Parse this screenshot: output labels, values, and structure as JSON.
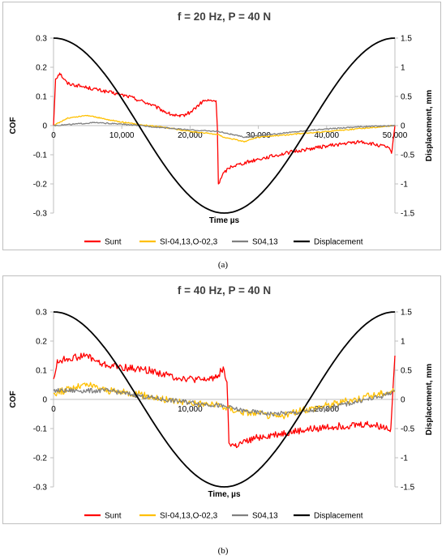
{
  "captions": [
    "(a)",
    "(b)"
  ],
  "chart_data": [
    {
      "type": "line",
      "title": "f = 20 Hz, P = 40 N",
      "xlabel": "Time µs",
      "ylabel": "COF",
      "y2label": "Displacement, mm",
      "xlim": [
        0,
        50000
      ],
      "ylim": [
        -0.3,
        0.3
      ],
      "y2lim": [
        -1.5,
        1.5
      ],
      "xticks": [
        0,
        10000,
        20000,
        30000,
        40000,
        50000
      ],
      "xtick_labels": [
        "0",
        "10,000",
        "20,000",
        "30,000",
        "40,000",
        "50,000"
      ],
      "yticks": [
        0.3,
        0.2,
        0.1,
        0,
        -0.1,
        -0.2,
        -0.3
      ],
      "ytick_labels": [
        "0.3",
        "0.2",
        "0.1",
        "0",
        "-0.1",
        "-0.2",
        "-0.3"
      ],
      "y2ticks": [
        1.5,
        1,
        0.5,
        0,
        -0.5,
        -1,
        -1.5
      ],
      "y2tick_labels": [
        "1.5",
        "1",
        "0.5",
        "0",
        "-0.5",
        "-1",
        "-1.5"
      ],
      "grid": false,
      "legend_position": "bottom",
      "legend": [
        "Sunt",
        "SI-04,13,O-02,3",
        "S04,13",
        "Displacement"
      ],
      "series": [
        {
          "name": "Sunt",
          "color": "#ff0000",
          "axis": "left",
          "noise": 0.006,
          "points": [
            [
              0,
              0.0
            ],
            [
              300,
              0.16
            ],
            [
              900,
              0.18
            ],
            [
              2000,
              0.145
            ],
            [
              5000,
              0.13
            ],
            [
              8000,
              0.115
            ],
            [
              11000,
              0.1
            ],
            [
              14000,
              0.075
            ],
            [
              17000,
              0.04
            ],
            [
              18500,
              0.03
            ],
            [
              20000,
              0.045
            ],
            [
              22000,
              0.085
            ],
            [
              23800,
              0.085
            ],
            [
              24000,
              -0.01
            ],
            [
              24150,
              -0.2
            ],
            [
              25000,
              -0.16
            ],
            [
              26000,
              -0.14
            ],
            [
              30000,
              -0.115
            ],
            [
              35000,
              -0.09
            ],
            [
              40000,
              -0.07
            ],
            [
              45000,
              -0.055
            ],
            [
              49000,
              -0.075
            ],
            [
              49500,
              -0.095
            ],
            [
              50000,
              0.0
            ]
          ]
        },
        {
          "name": "SI-04,13,O-02,3",
          "color": "#ffc000",
          "axis": "left",
          "noise": 0.002,
          "points": [
            [
              0,
              0.0
            ],
            [
              2000,
              0.025
            ],
            [
              5000,
              0.035
            ],
            [
              8000,
              0.02
            ],
            [
              12000,
              0.005
            ],
            [
              16000,
              -0.005
            ],
            [
              20000,
              -0.02
            ],
            [
              24000,
              -0.03
            ],
            [
              25000,
              -0.04
            ],
            [
              28000,
              -0.055
            ],
            [
              30000,
              -0.04
            ],
            [
              35000,
              -0.03
            ],
            [
              40000,
              -0.02
            ],
            [
              45000,
              -0.01
            ],
            [
              50000,
              0.0
            ]
          ]
        },
        {
          "name": "S04,13",
          "color": "#808080",
          "axis": "left",
          "noise": 0.002,
          "points": [
            [
              0,
              0.0
            ],
            [
              3000,
              0.005
            ],
            [
              6000,
              0.01
            ],
            [
              10000,
              0.005
            ],
            [
              15000,
              -0.005
            ],
            [
              20000,
              -0.015
            ],
            [
              24000,
              -0.02
            ],
            [
              26000,
              -0.03
            ],
            [
              28000,
              -0.04
            ],
            [
              32000,
              -0.03
            ],
            [
              38000,
              -0.015
            ],
            [
              44000,
              -0.005
            ],
            [
              50000,
              0.0
            ]
          ]
        },
        {
          "name": "Displacement",
          "color": "#000000",
          "axis": "right",
          "function": "cosine",
          "amplitude": 1.5,
          "period": 50000
        }
      ]
    },
    {
      "type": "line",
      "title": "f = 40 Hz, P = 40 N",
      "xlabel": "Time, µs",
      "ylabel": "COF",
      "y2label": "Displacement, mm",
      "xlim": [
        0,
        25000
      ],
      "ylim": [
        -0.3,
        0.3
      ],
      "y2lim": [
        -1.5,
        1.5
      ],
      "xticks": [
        0,
        10000,
        20000
      ],
      "xtick_labels": [
        "0",
        "10,000",
        "20,000"
      ],
      "yticks": [
        0.3,
        0.2,
        0.1,
        0,
        -0.1,
        -0.2,
        -0.3
      ],
      "ytick_labels": [
        "0.3",
        "0.2",
        "0.1",
        "0",
        "-0.1",
        "-0.2",
        "-0.3"
      ],
      "y2ticks": [
        1.5,
        1,
        0.5,
        0,
        -0.5,
        -1,
        -1.5
      ],
      "y2tick_labels": [
        "1.5",
        "1",
        "0.5",
        "0",
        "-0.5",
        "-1",
        "-1.5"
      ],
      "grid": false,
      "legend_position": "bottom",
      "legend": [
        "Sunt",
        "SI-04,13,O-02,3",
        "S04,13",
        "Displacement"
      ],
      "series": [
        {
          "name": "Sunt",
          "color": "#ff0000",
          "axis": "left",
          "noise": 0.012,
          "points": [
            [
              0,
              0.07
            ],
            [
              300,
              0.13
            ],
            [
              1000,
              0.14
            ],
            [
              2500,
              0.15
            ],
            [
              3500,
              0.12
            ],
            [
              5000,
              0.11
            ],
            [
              7000,
              0.1
            ],
            [
              9000,
              0.075
            ],
            [
              11000,
              0.065
            ],
            [
              12000,
              0.08
            ],
            [
              12300,
              0.1
            ],
            [
              12500,
              0.1
            ],
            [
              12700,
              0.06
            ],
            [
              12850,
              -0.15
            ],
            [
              13300,
              -0.16
            ],
            [
              15000,
              -0.13
            ],
            [
              17000,
              -0.115
            ],
            [
              20000,
              -0.095
            ],
            [
              23000,
              -0.085
            ],
            [
              24700,
              -0.1
            ],
            [
              25000,
              0.15
            ]
          ]
        },
        {
          "name": "SI-04,13,O-02,3",
          "color": "#ffc000",
          "axis": "left",
          "noise": 0.012,
          "points": [
            [
              0,
              0.02
            ],
            [
              1500,
              0.04
            ],
            [
              2500,
              0.05
            ],
            [
              4000,
              0.03
            ],
            [
              6000,
              0.02
            ],
            [
              8000,
              0.0
            ],
            [
              10000,
              -0.01
            ],
            [
              12000,
              -0.02
            ],
            [
              13500,
              -0.04
            ],
            [
              15000,
              -0.05
            ],
            [
              16500,
              -0.06
            ],
            [
              18000,
              -0.04
            ],
            [
              20000,
              -0.02
            ],
            [
              22000,
              0.0
            ],
            [
              24000,
              0.02
            ],
            [
              25000,
              0.03
            ]
          ]
        },
        {
          "name": "S04,13",
          "color": "#808080",
          "axis": "left",
          "noise": 0.008,
          "points": [
            [
              0,
              0.03
            ],
            [
              2000,
              0.03
            ],
            [
              4000,
              0.03
            ],
            [
              6000,
              0.015
            ],
            [
              8000,
              0.0
            ],
            [
              10000,
              -0.01
            ],
            [
              12000,
              -0.02
            ],
            [
              14000,
              -0.04
            ],
            [
              16000,
              -0.05
            ],
            [
              18000,
              -0.045
            ],
            [
              20000,
              -0.03
            ],
            [
              22000,
              -0.01
            ],
            [
              24000,
              0.01
            ],
            [
              25000,
              0.03
            ]
          ]
        },
        {
          "name": "Displacement",
          "color": "#000000",
          "axis": "right",
          "function": "cosine",
          "amplitude": 1.5,
          "period": 25000
        }
      ]
    }
  ]
}
